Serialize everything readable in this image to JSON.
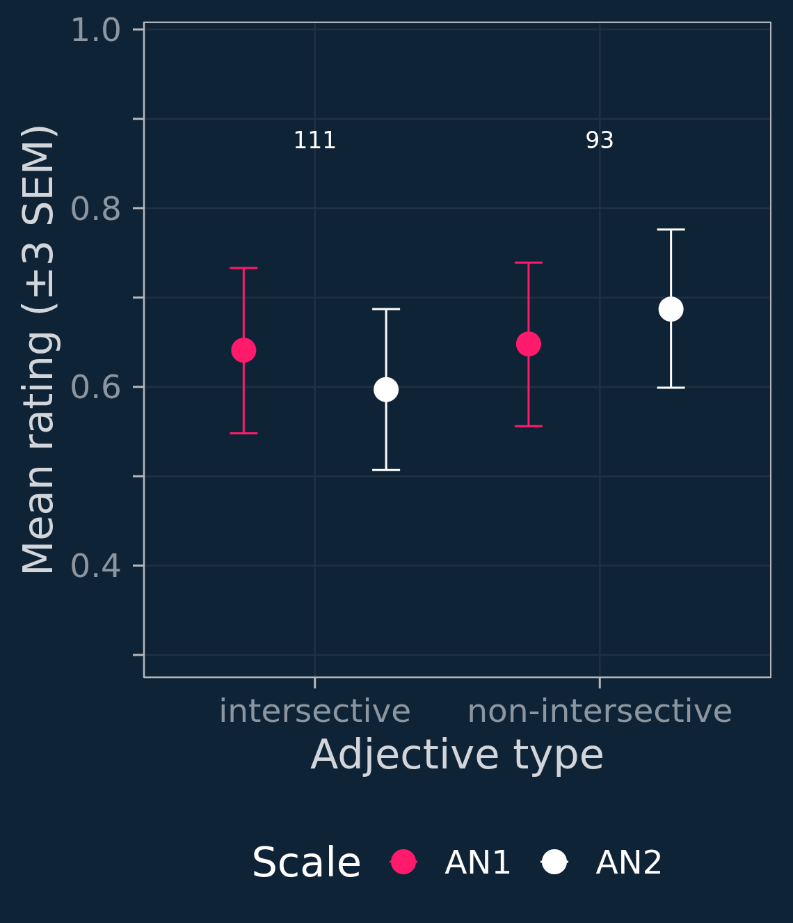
{
  "chart_data": {
    "type": "scatter",
    "xlabel": "Adjective type",
    "ylabel": "Mean rating (±3 SEM)",
    "legend_title": "Scale",
    "categories": [
      "intersective",
      "non-intersective"
    ],
    "series": [
      {
        "name": "AN1",
        "color": "#ff1a6c",
        "values": [
          0.641,
          0.648
        ],
        "errors": [
          [
            0.548,
            0.733
          ],
          [
            0.556,
            0.739
          ]
        ]
      },
      {
        "name": "AN2",
        "color": "#ffffff",
        "values": [
          0.597,
          0.687
        ],
        "errors": [
          [
            0.507,
            0.687
          ],
          [
            0.599,
            0.776
          ]
        ]
      }
    ],
    "ylim": [
      0.275,
      1.008
    ],
    "yticks": [
      {
        "value": 0.3,
        "label": null
      },
      0.4,
      {
        "value": 0.5,
        "label": null
      },
      0.6,
      {
        "value": 0.7,
        "label": null
      },
      0.8,
      {
        "value": 0.9,
        "label": null
      },
      {
        "value": 1,
        "label": "1.0"
      }
    ],
    "grid": true,
    "legend": "bottom",
    "marker": "circle",
    "annotations": [
      "111",
      "93"
    ]
  }
}
